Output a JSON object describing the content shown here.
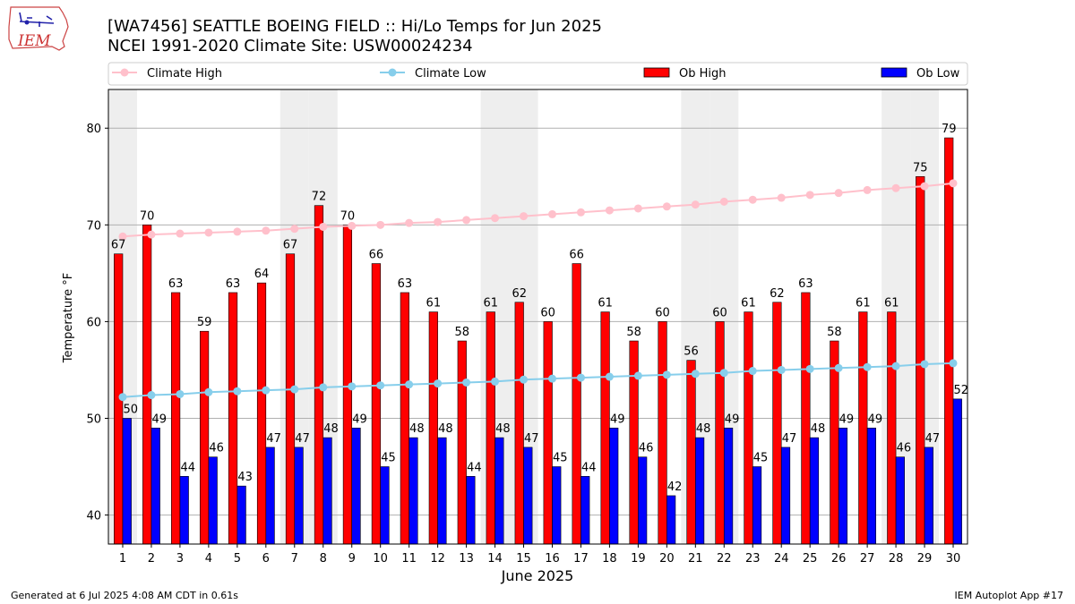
{
  "header": {
    "title": "[WA7456] SEATTLE BOEING FIELD :: Hi/Lo Temps for Jun 2025",
    "subtitle": "NCEI 1991-2020 Climate Site: USW00024234",
    "logo_text": "IEM"
  },
  "footer": {
    "left": "Generated at 6 Jul 2025 4:08 AM CDT in 0.61s",
    "right": "IEM Autoplot App #17"
  },
  "colors": {
    "ob_high": "#ff0000",
    "ob_low": "#0000ff",
    "climate_high": "#ffc0cb",
    "climate_low": "#87ceeb",
    "weekend_shade": "#eeeeee",
    "grid": "#b0b0b0"
  },
  "chart_data": {
    "type": "bar",
    "xlabel": "June 2025",
    "ylabel": "Temperature °F",
    "ylim": [
      37,
      84
    ],
    "yticks": [
      40,
      50,
      60,
      70,
      80
    ],
    "grid": "horizontal",
    "legend_placement": "top",
    "categories": [
      "1",
      "2",
      "3",
      "4",
      "5",
      "6",
      "7",
      "8",
      "9",
      "10",
      "11",
      "12",
      "13",
      "14",
      "15",
      "16",
      "17",
      "18",
      "19",
      "20",
      "21",
      "22",
      "23",
      "24",
      "25",
      "26",
      "27",
      "28",
      "29",
      "30"
    ],
    "weekend_days": [
      1,
      7,
      8,
      14,
      15,
      21,
      22,
      28,
      29
    ],
    "series": [
      {
        "name": "Climate High",
        "kind": "line",
        "values": [
          68.8,
          69.0,
          69.1,
          69.2,
          69.3,
          69.4,
          69.6,
          69.8,
          69.9,
          70.0,
          70.2,
          70.3,
          70.5,
          70.7,
          70.9,
          71.1,
          71.3,
          71.5,
          71.7,
          71.9,
          72.1,
          72.4,
          72.6,
          72.8,
          73.1,
          73.3,
          73.6,
          73.8,
          74.0,
          74.3
        ]
      },
      {
        "name": "Climate Low",
        "kind": "line",
        "values": [
          52.2,
          52.4,
          52.5,
          52.7,
          52.8,
          52.9,
          53.0,
          53.2,
          53.3,
          53.4,
          53.5,
          53.6,
          53.7,
          53.8,
          54.0,
          54.1,
          54.2,
          54.3,
          54.4,
          54.5,
          54.6,
          54.7,
          54.9,
          55.0,
          55.1,
          55.2,
          55.3,
          55.4,
          55.6,
          55.7
        ]
      },
      {
        "name": "Ob High",
        "kind": "bar",
        "values": [
          67,
          70,
          63,
          59,
          63,
          64,
          67,
          72,
          70,
          66,
          63,
          61,
          58,
          61,
          62,
          60,
          66,
          61,
          58,
          60,
          56,
          60,
          61,
          62,
          63,
          58,
          61,
          61,
          75,
          79
        ]
      },
      {
        "name": "Ob Low",
        "kind": "bar",
        "values": [
          50,
          49,
          44,
          46,
          43,
          47,
          47,
          48,
          49,
          45,
          48,
          48,
          44,
          48,
          47,
          45,
          44,
          49,
          46,
          42,
          48,
          49,
          45,
          47,
          48,
          49,
          49,
          46,
          47,
          52
        ]
      }
    ]
  }
}
